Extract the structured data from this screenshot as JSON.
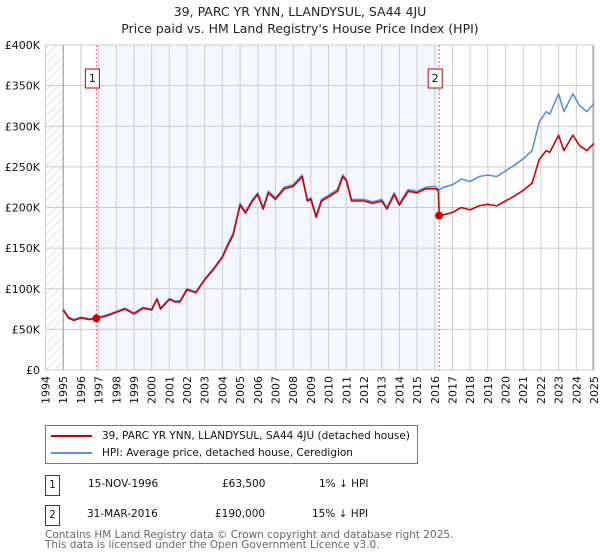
{
  "chart_data": {
    "type": "line",
    "title": "39, PARC YR YNN, LLANDYSUL, SA44 4JU",
    "subtitle": "Price paid vs. HM Land Registry's House Price Index (HPI)",
    "xlim": [
      1994,
      2025
    ],
    "ylim": [
      0,
      400000
    ],
    "x_ticks": [
      "1994",
      "1995",
      "1996",
      "1997",
      "1998",
      "1999",
      "2000",
      "2001",
      "2002",
      "2003",
      "2004",
      "2005",
      "2006",
      "2007",
      "2008",
      "2009",
      "2010",
      "2011",
      "2012",
      "2013",
      "2014",
      "2015",
      "2016",
      "2017",
      "2018",
      "2019",
      "2020",
      "2021",
      "2022",
      "2023",
      "2024",
      "2025"
    ],
    "y_ticks": [
      {
        "v": 0,
        "label": "£0"
      },
      {
        "v": 50000,
        "label": "£50K"
      },
      {
        "v": 100000,
        "label": "£100K"
      },
      {
        "v": 150000,
        "label": "£150K"
      },
      {
        "v": 200000,
        "label": "£200K"
      },
      {
        "v": 250000,
        "label": "£250K"
      },
      {
        "v": 300000,
        "label": "£300K"
      },
      {
        "v": 350000,
        "label": "£350K"
      },
      {
        "v": 400000,
        "label": "£400K"
      }
    ],
    "grid": true,
    "series": [
      {
        "name": "39, PARC YR YNN, LLANDYSUL, SA44 4JU (detached house)",
        "color": "#cc0000",
        "x": [
          1995.0,
          1995.3,
          1995.6,
          1996.0,
          1996.5,
          1996.875,
          1997.5,
          1998.0,
          1998.5,
          1999.0,
          1999.5,
          2000.0,
          2000.3,
          2000.5,
          2001.0,
          2001.3,
          2001.6,
          2002.0,
          2002.5,
          2003.0,
          2003.5,
          2004.0,
          2004.3,
          2004.6,
          2005.0,
          2005.3,
          2005.7,
          2006.0,
          2006.3,
          2006.6,
          2007.0,
          2007.5,
          2008.0,
          2008.5,
          2008.8,
          2009.0,
          2009.3,
          2009.6,
          2010.0,
          2010.5,
          2010.8,
          2011.0,
          2011.3,
          2011.7,
          2012.0,
          2012.5,
          2013.0,
          2013.3,
          2013.7,
          2014.0,
          2014.5,
          2015.0,
          2015.5,
          2016.0,
          2016.2,
          2016.25,
          2016.5,
          2017.0,
          2017.5,
          2018.0,
          2018.5,
          2019.0,
          2019.5,
          2020.0,
          2020.5,
          2021.0,
          2021.5,
          2021.9,
          2022.3,
          2022.5,
          2023.0,
          2023.3,
          2023.8,
          2024.2,
          2024.6,
          2025.0
        ],
        "values": [
          74000,
          64000,
          61000,
          64000,
          62000,
          63500,
          67000,
          71000,
          75000,
          69000,
          76000,
          74000,
          87000,
          75000,
          87000,
          84000,
          84000,
          99000,
          95000,
          111000,
          124000,
          139000,
          153000,
          166000,
          203000,
          193000,
          208000,
          216000,
          198000,
          218000,
          210000,
          223000,
          226000,
          238000,
          208000,
          210000,
          188000,
          208000,
          213000,
          220000,
          238000,
          233000,
          208000,
          208000,
          208000,
          205000,
          208000,
          198000,
          216000,
          203000,
          220000,
          218000,
          223000,
          223000,
          221000,
          190000,
          191000,
          194000,
          200000,
          197000,
          202000,
          204000,
          202000,
          208000,
          214000,
          221000,
          230000,
          259000,
          270000,
          268000,
          289000,
          270000,
          289000,
          276000,
          270000,
          279000
        ]
      },
      {
        "name": "HPI: Average price, detached house, Ceredigion",
        "color": "#5b8fd6",
        "x": [
          1995.0,
          1995.3,
          1995.6,
          1996.0,
          1996.5,
          1996.875,
          1997.5,
          1998.0,
          1998.5,
          1999.0,
          1999.5,
          2000.0,
          2000.3,
          2000.5,
          2001.0,
          2001.3,
          2001.6,
          2002.0,
          2002.5,
          2003.0,
          2003.5,
          2004.0,
          2004.3,
          2004.6,
          2005.0,
          2005.3,
          2005.7,
          2006.0,
          2006.3,
          2006.6,
          2007.0,
          2007.5,
          2008.0,
          2008.5,
          2008.8,
          2009.0,
          2009.3,
          2009.6,
          2010.0,
          2010.5,
          2010.8,
          2011.0,
          2011.3,
          2011.7,
          2012.0,
          2012.5,
          2013.0,
          2013.3,
          2013.7,
          2014.0,
          2014.5,
          2015.0,
          2015.5,
          2016.0,
          2016.25,
          2016.5,
          2017.0,
          2017.5,
          2018.0,
          2018.5,
          2019.0,
          2019.5,
          2020.0,
          2020.5,
          2021.0,
          2021.5,
          2021.9,
          2022.3,
          2022.5,
          2023.0,
          2023.3,
          2023.8,
          2024.2,
          2024.6,
          2025.0
        ],
        "values": [
          75000,
          65000,
          62000,
          65000,
          63000,
          64000,
          68000,
          72000,
          76000,
          70000,
          77000,
          75000,
          88000,
          76000,
          88000,
          85000,
          85000,
          100000,
          96000,
          112000,
          125000,
          140000,
          155000,
          168000,
          205000,
          195000,
          210000,
          218000,
          200000,
          220000,
          212000,
          225000,
          228000,
          240000,
          210000,
          212000,
          190000,
          210000,
          215000,
          222000,
          240000,
          235000,
          210000,
          210000,
          210000,
          207000,
          210000,
          200000,
          218000,
          205000,
          222000,
          220000,
          225000,
          226000,
          222000,
          225000,
          228000,
          235000,
          232000,
          238000,
          240000,
          238000,
          245000,
          252000,
          260000,
          270000,
          305000,
          318000,
          315000,
          340000,
          318000,
          340000,
          325000,
          318000,
          328000
        ]
      }
    ],
    "annotations": [
      {
        "label": "1",
        "x": 1996.875,
        "value": 63500
      },
      {
        "label": "2",
        "x": 2016.25,
        "value": 190000
      }
    ],
    "legend_position": "bottom"
  },
  "legend": [
    {
      "label": "39, PARC YR YNN, LLANDYSUL, SA44 4JU (detached house)",
      "color": "#cc0000"
    },
    {
      "label": "HPI: Average price, detached house, Ceredigion",
      "color": "#5b8fd6"
    }
  ],
  "sales": [
    {
      "num": "1",
      "date": "15-NOV-1996",
      "price": "£63,500",
      "hpi": "1% ↓ HPI"
    },
    {
      "num": "2",
      "date": "31-MAR-2016",
      "price": "£190,000",
      "hpi": "15% ↓ HPI"
    }
  ],
  "footer": {
    "line1": "Contains HM Land Registry data © Crown copyright and database right 2025.",
    "line2": "This data is licensed under the Open Government Licence v3.0."
  }
}
